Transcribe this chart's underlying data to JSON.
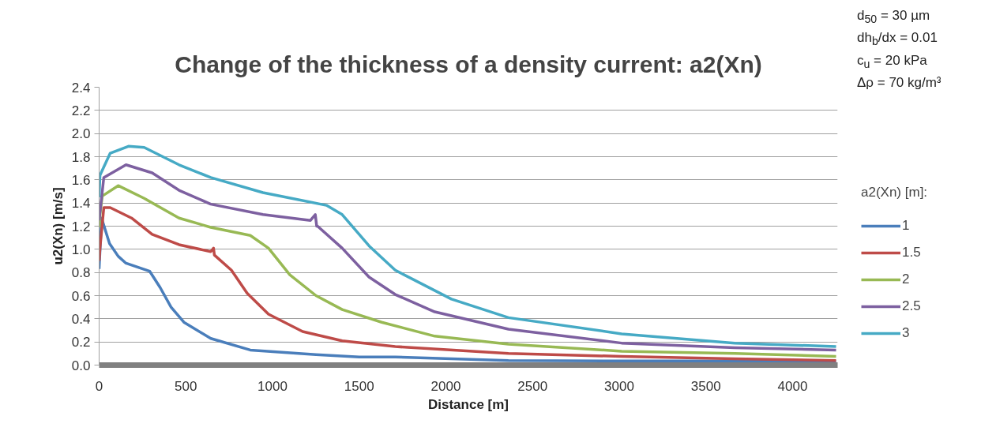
{
  "chart_data": {
    "type": "line",
    "title": "Change of the thickness of a density current: a2(Xn)",
    "xlabel": "Distance [m]",
    "ylabel": "u2(Xn) [m/s]",
    "legend_title": "a2(Xn) [m]:",
    "annotations": [
      "d$_{50}$ = 30 µm",
      "dh$_{b}$/dx = 0.01",
      "c$_{u}$ = 20 kPa",
      "Δρ = 70 kg/m³"
    ],
    "xlim": [
      0,
      4260
    ],
    "xticks": [
      0,
      500,
      1000,
      1500,
      2000,
      2500,
      3000,
      3500,
      4000
    ],
    "ylim": [
      0,
      2.4
    ],
    "yticks": [
      {
        "value": 0,
        "label": "0.0"
      },
      0.2,
      0.4,
      0.6,
      0.8,
      {
        "value": 1,
        "label": "1.0"
      },
      1.2,
      1.4,
      1.6,
      1.8,
      {
        "value": 2,
        "label": "2.0"
      },
      2.2,
      2.4
    ],
    "grid": "y",
    "legend": "right",
    "line_style": "solid",
    "series": [
      {
        "name": "1",
        "color": "#4a7ebb",
        "x": [
          0,
          14,
          60,
          110,
          155,
          292,
          352,
          415,
          489,
          644,
          872,
          1251,
          1500,
          1708,
          2361,
          3014,
          3667,
          4251
        ],
        "values": [
          0.83,
          1.27,
          1.05,
          0.94,
          0.88,
          0.81,
          0.67,
          0.5,
          0.37,
          0.23,
          0.13,
          0.09,
          0.07,
          0.07,
          0.04,
          0.035,
          0.035,
          0.03
        ]
      },
      {
        "name": "1.5",
        "color": "#be4b48",
        "x": [
          0,
          5,
          27,
          64,
          187,
          306,
          461,
          644,
          660,
          665,
          763,
          854,
          977,
          1174,
          1402,
          1708,
          2361,
          3014,
          3667,
          4251
        ],
        "values": [
          0.9,
          1.01,
          1.36,
          1.36,
          1.27,
          1.13,
          1.04,
          0.98,
          1.01,
          0.95,
          0.82,
          0.62,
          0.44,
          0.29,
          0.21,
          0.16,
          0.1,
          0.075,
          0.055,
          0.04
        ]
      },
      {
        "name": "2",
        "color": "#98b954",
        "x": [
          0,
          5,
          18,
          110,
          260,
          461,
          644,
          872,
          977,
          1100,
          1251,
          1402,
          1630,
          1936,
          2361,
          3014,
          3667,
          4251
        ],
        "values": [
          1.19,
          1.3,
          1.46,
          1.55,
          1.44,
          1.27,
          1.19,
          1.12,
          1.01,
          0.78,
          0.6,
          0.48,
          0.37,
          0.25,
          0.18,
          0.12,
          0.1,
          0.075
        ]
      },
      {
        "name": "2.5",
        "color": "#7d60a0",
        "x": [
          0,
          5,
          27,
          155,
          306,
          461,
          644,
          945,
          1219,
          1247,
          1255,
          1260,
          1402,
          1557,
          1708,
          1936,
          2361,
          3014,
          3667,
          4251
        ],
        "values": [
          1.25,
          1.32,
          1.62,
          1.73,
          1.66,
          1.51,
          1.39,
          1.3,
          1.25,
          1.3,
          1.2,
          1.2,
          1.01,
          0.76,
          0.61,
          0.46,
          0.31,
          0.19,
          0.15,
          0.13
        ]
      },
      {
        "name": "3",
        "color": "#46aac5",
        "x": [
          0,
          5,
          64,
          169,
          260,
          461,
          644,
          945,
          1311,
          1402,
          1557,
          1708,
          2032,
          2361,
          3014,
          3667,
          4251
        ],
        "values": [
          1.45,
          1.64,
          1.83,
          1.89,
          1.88,
          1.73,
          1.62,
          1.49,
          1.38,
          1.3,
          1.03,
          0.82,
          0.57,
          0.41,
          0.27,
          0.19,
          0.16
        ]
      }
    ]
  }
}
